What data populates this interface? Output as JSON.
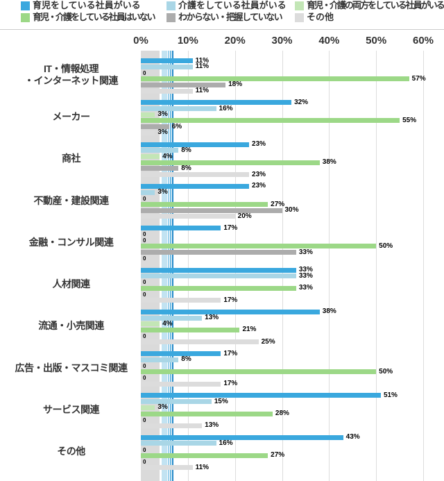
{
  "legend": {
    "items": [
      {
        "label": "育児をしている社員がいる",
        "color": "#3AA8DE"
      },
      {
        "label": "介護をしている社員がいる",
        "color": "#A9D6E6"
      },
      {
        "label": "育児・介護の両方をしている社員がいる",
        "color": "#C3E6B6"
      },
      {
        "label": "育児・介護をしている社員はいない",
        "color": "#9CD887"
      },
      {
        "label": "わからない・把握していない",
        "color": "#ACACAC"
      },
      {
        "label": "その他",
        "color": "#DCDCDC"
      }
    ]
  },
  "chart_data": {
    "type": "bar",
    "orientation": "horizontal",
    "title": "",
    "xlabel": "",
    "ylabel": "",
    "xlim": [
      0,
      60
    ],
    "x_ticks": [
      "0%",
      "10%",
      "20%",
      "30%",
      "40%",
      "50%",
      "60%"
    ],
    "grid": "vertical",
    "legend_position": "top",
    "value_label_suffix": "%",
    "zero_label": "0",
    "categories": [
      "IT・情報処理・インターネット関連",
      "メーカー",
      "商社",
      "不動産・建設関連",
      "金融・コンサル関連",
      "人材関連",
      "流通・小売関連",
      "広告・出版・マスコミ関連",
      "サービス関連",
      "その他"
    ],
    "categories_display": [
      [
        "IT・情報処理",
        "・インターネット関連"
      ],
      [
        "メーカー"
      ],
      [
        "商社"
      ],
      [
        "不動産・建設関連"
      ],
      [
        "金融・コンサル関連"
      ],
      [
        "人材関連"
      ],
      [
        "流通・小売関連"
      ],
      [
        "広告・出版・マスコミ関連"
      ],
      [
        "サービス関連"
      ],
      [
        "その他"
      ]
    ],
    "series": [
      {
        "name": "育児をしている社員がいる",
        "color": "#3AA8DE",
        "values": [
          11,
          32,
          23,
          23,
          17,
          33,
          38,
          17,
          51,
          43
        ]
      },
      {
        "name": "介護をしている社員がいる",
        "color": "#A9D6E6",
        "values": [
          11,
          16,
          8,
          3,
          0,
          33,
          13,
          8,
          15,
          16
        ]
      },
      {
        "name": "育児・介護の両方をしている社員がいる",
        "color": "#C3E6B6",
        "values": [
          0,
          3,
          4,
          0,
          0,
          0,
          4,
          0,
          3,
          0
        ]
      },
      {
        "name": "育児・介護をしている社員はいない",
        "color": "#9CD887",
        "values": [
          57,
          55,
          38,
          27,
          50,
          33,
          21,
          50,
          28,
          27
        ]
      },
      {
        "name": "わからない・把握していない",
        "color": "#ACACAC",
        "values": [
          18,
          6,
          8,
          30,
          33,
          0,
          0,
          0,
          0,
          0
        ]
      },
      {
        "name": "その他",
        "color": "#DCDCDC",
        "values": [
          11,
          3,
          23,
          20,
          0,
          17,
          25,
          17,
          13,
          11
        ]
      }
    ],
    "reference_bands": [
      {
        "from_pct": 0,
        "to_pct": 4.0,
        "color": "#DADADA"
      },
      {
        "from_pct": 4.35,
        "to_pct": 5.55,
        "color": "#C2E3F2"
      }
    ],
    "reference_lines": [
      {
        "pct": 5.8,
        "color": "#9FD2EC",
        "width": 1.5
      },
      {
        "pct": 6.25,
        "color": "#6FBBE4",
        "width": 1.5
      },
      {
        "pct": 6.7,
        "color": "#2288C8",
        "width": 2
      }
    ]
  }
}
